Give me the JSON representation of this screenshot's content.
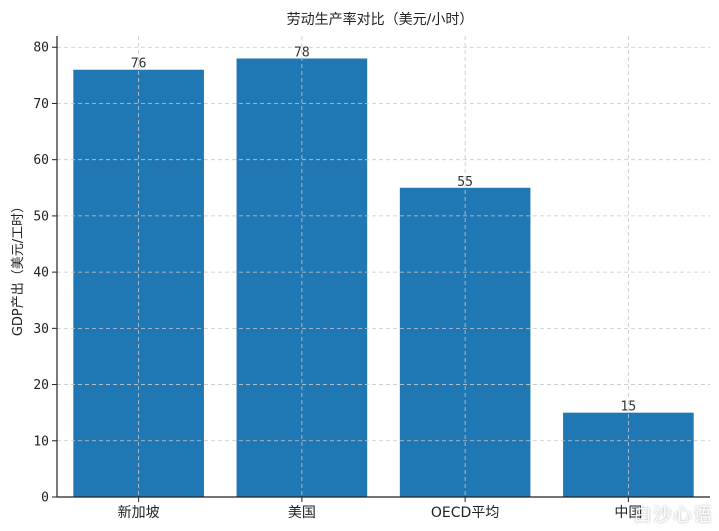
{
  "chart_data": {
    "type": "bar",
    "title": "劳动生产率对比（美元/小时）",
    "xlabel": "",
    "ylabel": "GDP产出（美元/工时）",
    "categories": [
      "新加坡",
      "美国",
      "OECD平均",
      "中国"
    ],
    "values": [
      76,
      78,
      55,
      15
    ],
    "ylim": [
      0,
      82
    ],
    "yticks": [
      0,
      10,
      20,
      30,
      40,
      50,
      60,
      70,
      80
    ],
    "grid": true,
    "bar_color": "#1f77b4"
  },
  "watermark": "白沙心语"
}
